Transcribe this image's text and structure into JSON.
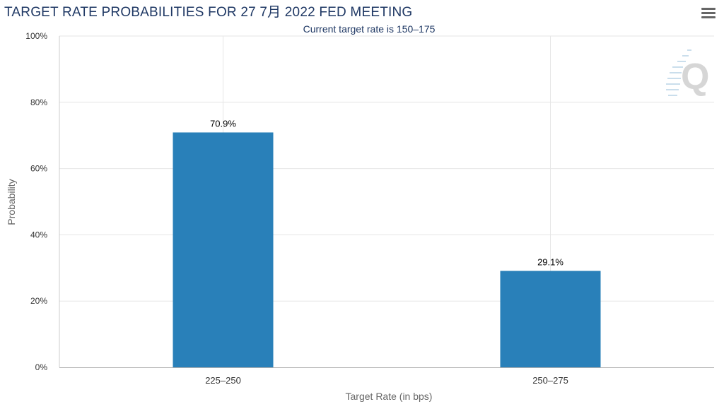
{
  "chart_data": {
    "type": "bar",
    "title": "TARGET RATE PROBABILITIES FOR 27 7月 2022 FED MEETING",
    "subtitle": "Current target rate is 150–175",
    "xlabel": "Target Rate (in bps)",
    "ylabel": "Probability",
    "categories": [
      "225–250",
      "250–275"
    ],
    "values": [
      70.9,
      29.1
    ],
    "data_labels": [
      "70.9%",
      "29.1%"
    ],
    "ylim": [
      0,
      100
    ],
    "yticks": [
      0,
      20,
      40,
      60,
      80,
      100
    ],
    "ytick_labels": [
      "0%",
      "20%",
      "40%",
      "60%",
      "80%",
      "100%"
    ],
    "grid": true,
    "bar_color": "#2980b9",
    "legend": "none"
  },
  "toolbar": {
    "menu_icon": "hamburger-menu-icon"
  },
  "watermark": {
    "icon": "quikstrike-q-logo",
    "text": "Q"
  }
}
